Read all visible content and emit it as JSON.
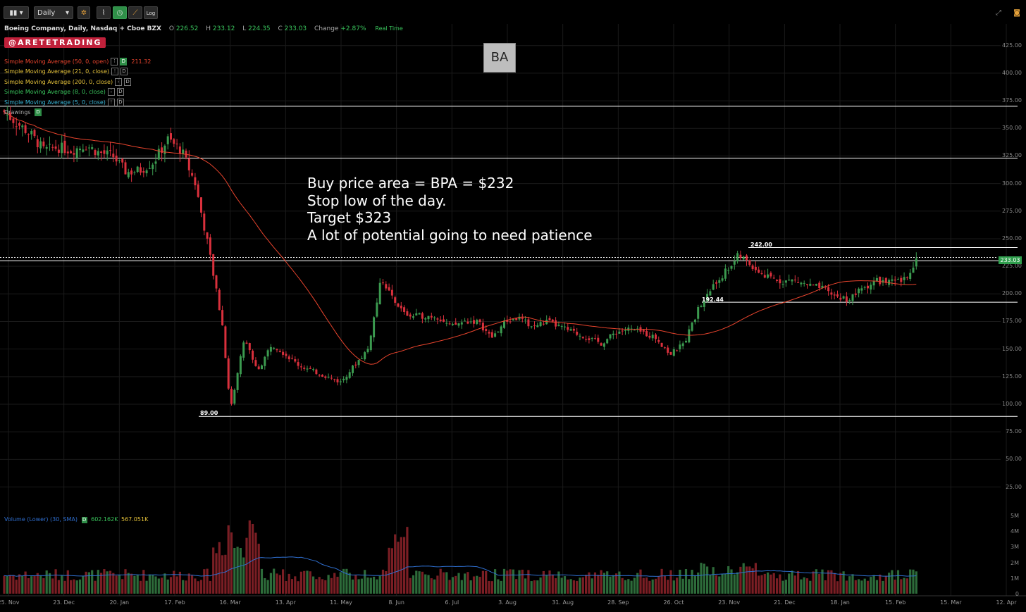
{
  "toolbar": {
    "interval": "Daily",
    "log_label": "Log"
  },
  "header": {
    "title": "Boeing Company, Daily, Nasdaq + Cboe BZX",
    "open_label": "O",
    "open": "226.52",
    "high_label": "H",
    "high": "233.12",
    "low_label": "L",
    "low": "224.35",
    "close_label": "C",
    "close": "233.03",
    "change_label": "Change",
    "change": "+2.87%",
    "realtime": "Real Time",
    "brand": "@ARETETRADING",
    "ticker": "BA"
  },
  "legend": [
    {
      "label": "Simple Moving Average (50, 0, open)",
      "value": "211.32",
      "color": "#e8442d",
      "visible": true
    },
    {
      "label": "Simple Moving Average (21, 0, close)",
      "value": "",
      "color": "#e5c23a",
      "visible": false
    },
    {
      "label": "Simple Moving Average (200, 0, close)",
      "value": "",
      "color": "#e5c23a",
      "visible": false
    },
    {
      "label": "Simple Moving Average (8, 0, close)",
      "value": "",
      "color": "#39c45c",
      "visible": false
    },
    {
      "label": "Simple Moving Average (5, 0, close)",
      "value": "",
      "color": "#39b5d6",
      "visible": false
    }
  ],
  "drawings_label": "Drawings",
  "annotation": [
    "Buy price area = BPA = $232",
    "Stop low of the day.",
    "Target $323",
    "A lot of potential going to need patience"
  ],
  "current_price_tag": "233.03",
  "level_labels": {
    "high": "242.00",
    "mid": "192.44",
    "low": "89.00"
  },
  "volume_legend": {
    "label": "Volume (Lower) (30, SMA)",
    "v1": "602.162K",
    "v2": "567.051K"
  },
  "colors": {
    "up": "#3b9a4f",
    "down": "#d9303c",
    "sma": "#e8442d",
    "volume_ma": "#2f6fd0",
    "level_lines": "#ffffff"
  },
  "chart_data": {
    "type": "candlestick",
    "symbol": "BA",
    "price_axis_ticks": [
      425,
      400,
      375,
      350,
      325,
      300,
      275,
      250,
      225,
      200,
      175,
      150,
      125,
      100,
      75,
      50,
      25
    ],
    "volume_axis_ticks": [
      "5M",
      "4M",
      "3M",
      "2M",
      "1M",
      "0"
    ],
    "date_ticks": [
      "25. Nov",
      "23. Dec",
      "20. Jan",
      "17. Feb",
      "16. Mar",
      "13. Apr",
      "11. May",
      "8. Jun",
      "6. Jul",
      "3. Aug",
      "31. Aug",
      "28. Sep",
      "26. Oct",
      "23. Nov",
      "21. Dec",
      "18. Jan",
      "15. Feb",
      "15. Mar",
      "12. Apr"
    ],
    "ylim": [
      0,
      440
    ],
    "horizontal_levels": [
      370,
      323,
      242,
      233.03,
      192.44,
      89
    ],
    "close_path": [
      [
        "2019-11-25",
        366
      ],
      [
        "2019-12-02",
        355
      ],
      [
        "2019-12-09",
        345
      ],
      [
        "2019-12-16",
        330
      ],
      [
        "2019-12-23",
        333
      ],
      [
        "2019-12-30",
        330
      ],
      [
        "2020-01-06",
        335
      ],
      [
        "2020-01-13",
        328
      ],
      [
        "2020-01-20",
        325
      ],
      [
        "2020-01-27",
        310
      ],
      [
        "2020-02-03",
        312
      ],
      [
        "2020-02-10",
        320
      ],
      [
        "2020-02-17",
        340
      ],
      [
        "2020-02-24",
        330
      ],
      [
        "2020-03-02",
        300
      ],
      [
        "2020-03-09",
        240
      ],
      [
        "2020-03-16",
        170
      ],
      [
        "2020-03-20",
        95
      ],
      [
        "2020-03-27",
        160
      ],
      [
        "2020-04-03",
        130
      ],
      [
        "2020-04-10",
        155
      ],
      [
        "2020-04-17",
        145
      ],
      [
        "2020-04-24",
        135
      ],
      [
        "2020-05-01",
        130
      ],
      [
        "2020-05-08",
        125
      ],
      [
        "2020-05-15",
        120
      ],
      [
        "2020-05-22",
        135
      ],
      [
        "2020-05-29",
        150
      ],
      [
        "2020-06-05",
        215
      ],
      [
        "2020-06-12",
        190
      ],
      [
        "2020-06-19",
        180
      ],
      [
        "2020-06-26",
        180
      ],
      [
        "2020-07-03",
        180
      ],
      [
        "2020-07-10",
        170
      ],
      [
        "2020-07-17",
        175
      ],
      [
        "2020-07-24",
        175
      ],
      [
        "2020-07-31",
        160
      ],
      [
        "2020-08-07",
        175
      ],
      [
        "2020-08-14",
        178
      ],
      [
        "2020-08-21",
        170
      ],
      [
        "2020-08-28",
        175
      ],
      [
        "2020-09-04",
        170
      ],
      [
        "2020-09-11",
        165
      ],
      [
        "2020-09-18",
        160
      ],
      [
        "2020-09-25",
        155
      ],
      [
        "2020-10-02",
        165
      ],
      [
        "2020-10-09",
        168
      ],
      [
        "2020-10-16",
        165
      ],
      [
        "2020-10-23",
        160
      ],
      [
        "2020-10-30",
        145
      ],
      [
        "2020-11-06",
        155
      ],
      [
        "2020-11-13",
        185
      ],
      [
        "2020-11-20",
        205
      ],
      [
        "2020-11-27",
        220
      ],
      [
        "2020-12-04",
        235
      ],
      [
        "2020-12-11",
        225
      ],
      [
        "2020-12-18",
        215
      ],
      [
        "2020-12-25",
        212
      ],
      [
        "2021-01-01",
        212
      ],
      [
        "2021-01-08",
        208
      ],
      [
        "2021-01-15",
        205
      ],
      [
        "2021-01-22",
        198
      ],
      [
        "2021-01-29",
        195
      ],
      [
        "2021-02-05",
        205
      ],
      [
        "2021-02-12",
        212
      ],
      [
        "2021-02-19",
        210
      ],
      [
        "2021-02-26",
        212
      ],
      [
        "2021-03-05",
        233
      ]
    ]
  }
}
